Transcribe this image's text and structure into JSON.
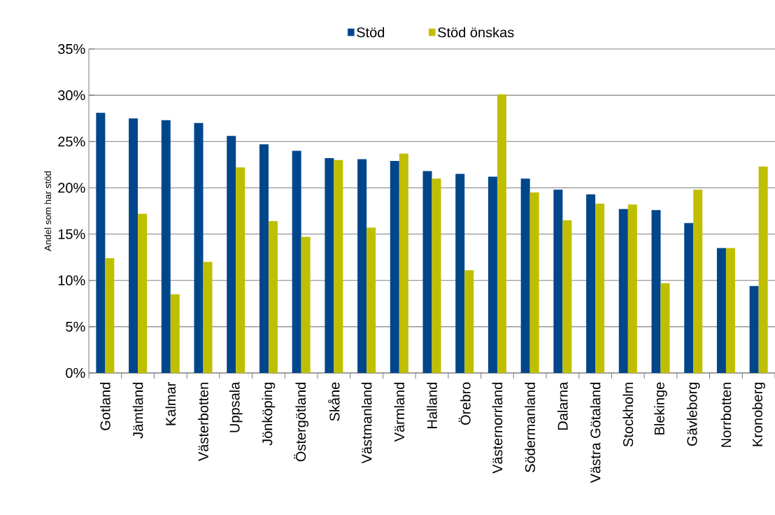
{
  "chart_data": {
    "type": "bar",
    "ylabel": "Andel som har stöd",
    "categories": [
      "Gotland",
      "Jämtland",
      "Kalmar",
      "Västerbotten",
      "Uppsala",
      "Jönköping",
      "Östergötland",
      "Skåne",
      "Västmanland",
      "Värmland",
      "Halland",
      "Örebro",
      "Västernorrland",
      "Södermanland",
      "Dalarna",
      "Västra Götaland",
      "Stockholm",
      "Blekinge",
      "Gävleborg",
      "Norrbotten",
      "Kronoberg"
    ],
    "series": [
      {
        "name": "Stöd",
        "color": "#00468b",
        "values": [
          28.1,
          27.5,
          27.3,
          27.0,
          25.6,
          24.7,
          24.0,
          23.2,
          23.1,
          22.9,
          21.8,
          21.5,
          21.2,
          21.0,
          19.8,
          19.3,
          17.7,
          17.6,
          16.2,
          13.5,
          9.4
        ]
      },
      {
        "name": "Stöd önskas",
        "color": "#bfbf00",
        "values": [
          12.4,
          17.2,
          8.5,
          12.0,
          22.2,
          16.4,
          14.7,
          23.0,
          15.7,
          23.7,
          21.0,
          11.1,
          30.1,
          19.5,
          16.5,
          18.3,
          18.2,
          9.7,
          19.8,
          13.5,
          22.3
        ]
      }
    ],
    "ylim": [
      0,
      35
    ],
    "yticks": [
      {
        "value": 0,
        "label": "0%"
      },
      {
        "value": 5,
        "label": "5%"
      },
      {
        "value": 10,
        "label": "10%"
      },
      {
        "value": 15,
        "label": "15%"
      },
      {
        "value": 20,
        "label": "20%"
      },
      {
        "value": 25,
        "label": "25%"
      },
      {
        "value": 30,
        "label": "30%"
      },
      {
        "value": 35,
        "label": "35%"
      }
    ],
    "grid": "y",
    "legend": "top"
  }
}
